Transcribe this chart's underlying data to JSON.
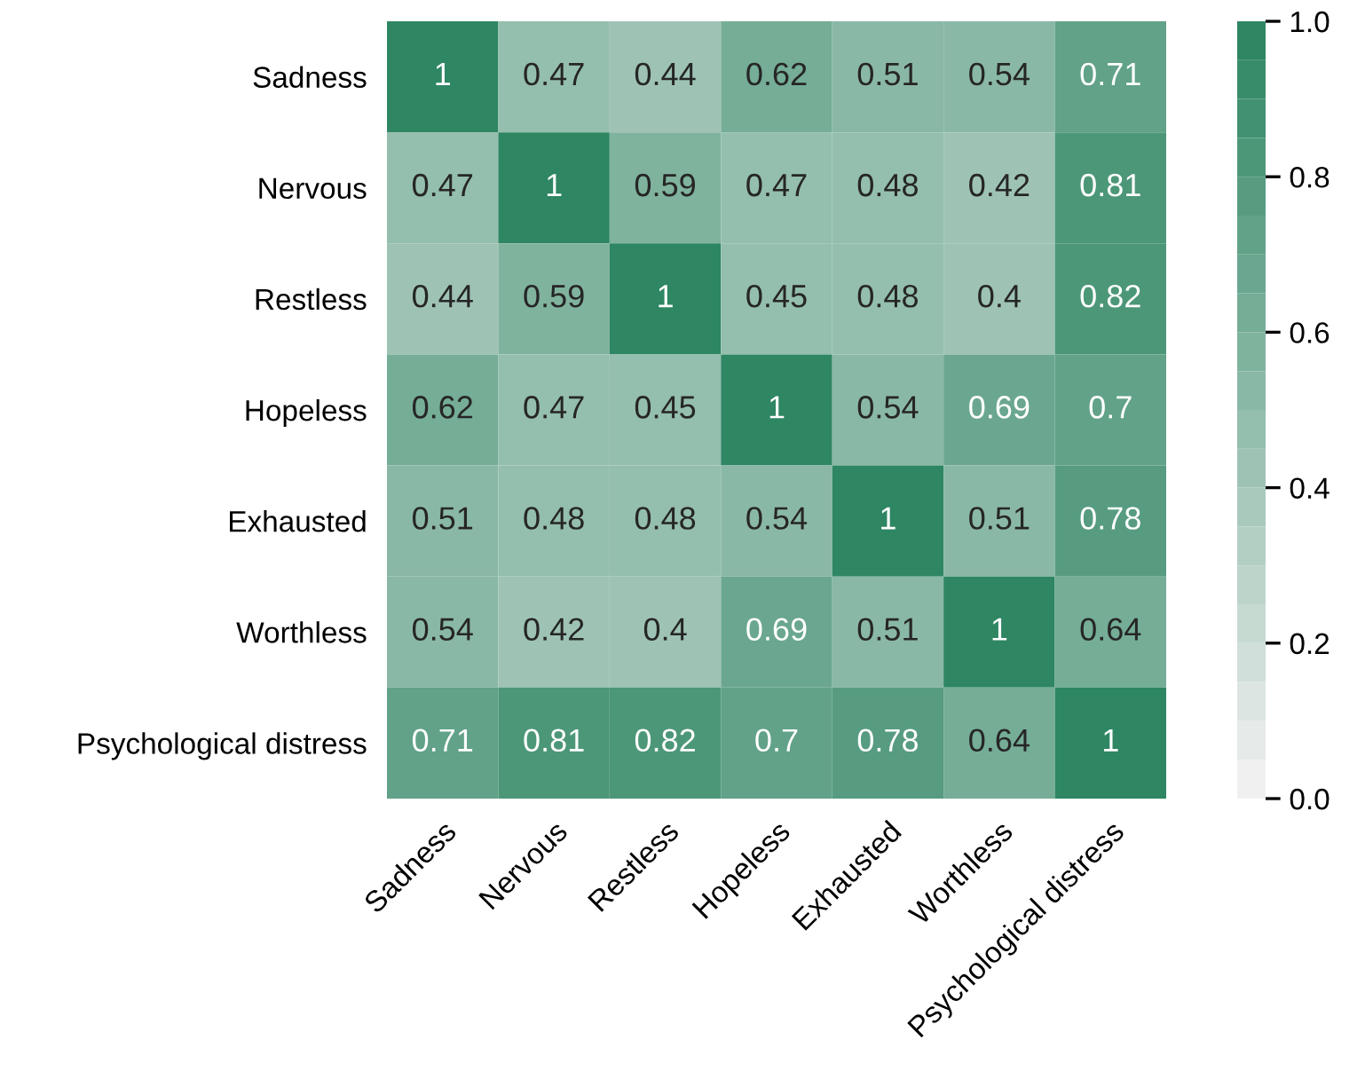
{
  "chart_data": {
    "type": "heatmap",
    "categories": [
      "Sadness",
      "Nervous",
      "Restless",
      "Hopeless",
      "Exhausted",
      "Worthless",
      "Psychological distress"
    ],
    "y_categories": [
      "Sadness",
      "Nervous",
      "Restless",
      "Hopeless",
      "Exhausted",
      "Worthless",
      "Psychological distress"
    ],
    "cells": [
      [
        1,
        0.47,
        0.44,
        0.62,
        0.51,
        0.54,
        0.71
      ],
      [
        0.47,
        1,
        0.59,
        0.47,
        0.48,
        0.42,
        0.81
      ],
      [
        0.44,
        0.59,
        1,
        0.45,
        0.48,
        0.4,
        0.82
      ],
      [
        0.62,
        0.47,
        0.45,
        1,
        0.54,
        0.69,
        0.7
      ],
      [
        0.51,
        0.48,
        0.48,
        0.54,
        1,
        0.51,
        0.78
      ],
      [
        0.54,
        0.42,
        0.4,
        0.69,
        0.51,
        1,
        0.64
      ],
      [
        0.71,
        0.81,
        0.82,
        0.7,
        0.78,
        0.64,
        1
      ]
    ],
    "data_labels": true,
    "clim": [
      0,
      1
    ],
    "cticks": [
      {
        "value": 0,
        "label": "0.0"
      },
      {
        "value": 0.2,
        "label": "0.2"
      },
      {
        "value": 0.4,
        "label": "0.4"
      },
      {
        "value": 0.6,
        "label": "0.6"
      },
      {
        "value": 0.8,
        "label": "0.8"
      },
      {
        "value": 1,
        "label": "1.0"
      }
    ]
  }
}
